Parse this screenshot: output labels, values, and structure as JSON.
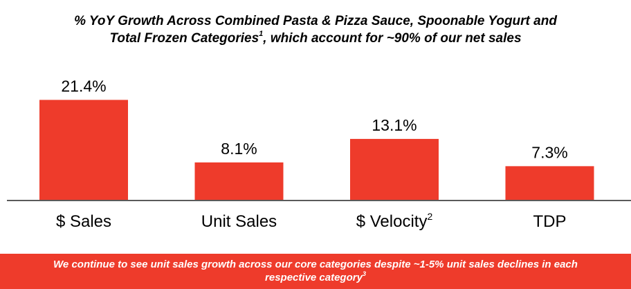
{
  "title": {
    "line1": "% YoY Growth Across Combined Pasta & Pizza Sauce, Spoonable Yogurt and",
    "line2_text": "Total Frozen Categories",
    "line2_sup": "1",
    "line2_rest": ", which account for ~90% of our net sales"
  },
  "chart_data": {
    "type": "bar",
    "categories": [
      "$ Sales",
      "Unit Sales",
      "$ Velocity",
      "TDP"
    ],
    "category_superscripts": [
      "",
      "",
      "2",
      ""
    ],
    "values": [
      21.4,
      8.1,
      13.1,
      7.3
    ],
    "data_labels": [
      "21.4%",
      "8.1%",
      "13.1%",
      "7.3%"
    ],
    "ylim": [
      0,
      25
    ],
    "grid": false,
    "xlabel": "",
    "ylabel": ""
  },
  "banner": {
    "line1": "We continue to see unit sales growth across our core categories despite ~1-5% unit sales declines in each",
    "line2_text": "respective category",
    "line2_sup": "3"
  },
  "colors": {
    "bar": "#ee3b2b",
    "banner": "#ee3b2b",
    "axis": "#5a5a5a"
  }
}
